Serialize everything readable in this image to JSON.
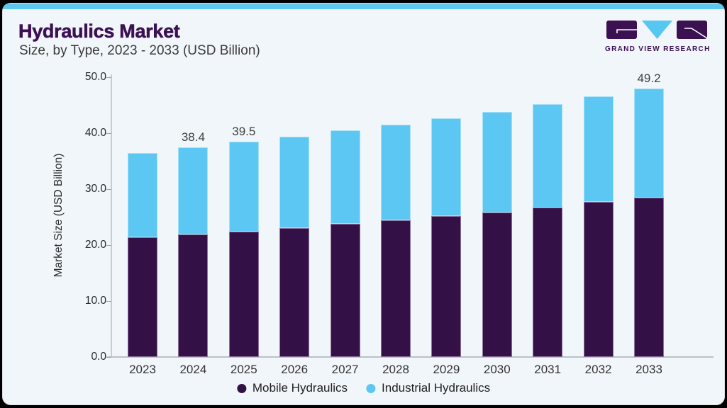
{
  "page": {
    "outside_bg": "#000000",
    "card_bg": "#f1f6fa",
    "card_border": "#d9dfe4",
    "top_strip_color": "#5ec8f0"
  },
  "header": {
    "title": "Hydraulics Market",
    "title_color": "#3c1053",
    "subtitle": "Size, by Type, 2023 - 2033 (USD Billion)"
  },
  "logo": {
    "text": "GRAND VIEW RESEARCH",
    "purple": "#3b1152",
    "blue": "#56c7f0"
  },
  "chart_data": {
    "type": "bar",
    "stacked": true,
    "title": "Hydraulics Market Size, by Type, 2023 - 2033 (USD Billion)",
    "categories": [
      "2023",
      "2024",
      "2025",
      "2026",
      "2027",
      "2028",
      "2029",
      "2030",
      "2031",
      "2032",
      "2033"
    ],
    "series": [
      {
        "name": "Mobile Hydraulics",
        "color": "#331146",
        "values": [
          21.9,
          22.5,
          23.0,
          23.6,
          24.4,
          25.1,
          25.8,
          26.5,
          27.4,
          28.4,
          29.2
        ]
      },
      {
        "name": "Industrial Hydraulics",
        "color": "#5bc7f2",
        "values": [
          15.5,
          15.9,
          16.5,
          16.8,
          17.1,
          17.5,
          18.0,
          18.5,
          19.0,
          19.4,
          20.0
        ]
      }
    ],
    "totals": [
      37.4,
      38.4,
      39.5,
      40.4,
      41.5,
      42.6,
      43.8,
      45.0,
      46.4,
      47.8,
      49.2
    ],
    "bar_labels": [
      "",
      "38.4",
      "39.5",
      "",
      "",
      "",
      "",
      "",
      "",
      "",
      "49.2"
    ],
    "xlabel": "",
    "ylabel": "Market Size (USD Billion)",
    "ylim": [
      0,
      50
    ],
    "yticks": [
      "0.0",
      "10.0",
      "20.0",
      "30.0",
      "40.0",
      "50.0"
    ],
    "grid": false,
    "legend_position": "bottom",
    "text_color": "#2a2a2a"
  }
}
